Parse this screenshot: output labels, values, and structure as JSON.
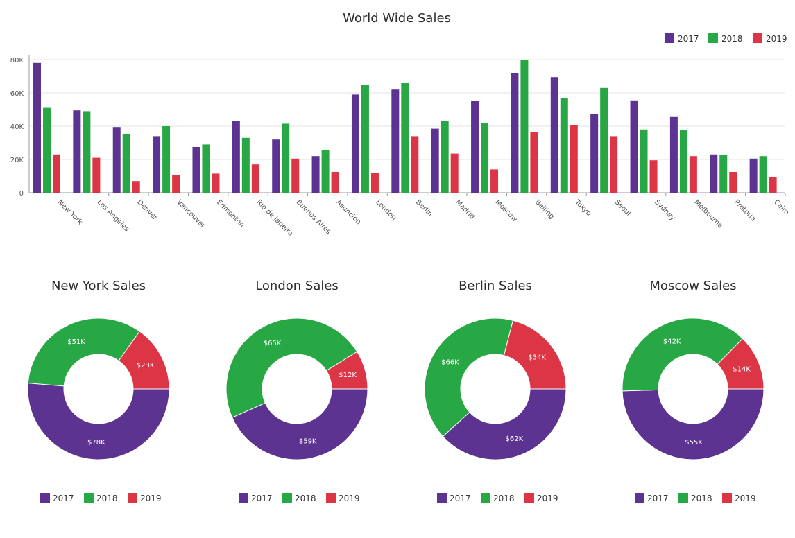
{
  "colors": {
    "2017": "#5c3390",
    "2018": "#28a745",
    "2019": "#dc3545"
  },
  "chart_data": [
    {
      "type": "bar",
      "title": "World Wide Sales",
      "xlabel": "",
      "ylabel": "",
      "ylim": [
        0,
        80000
      ],
      "y_ticks": [
        0,
        20000,
        40000,
        60000,
        80000
      ],
      "y_tick_labels": [
        "0",
        "20K",
        "40K",
        "60K",
        "80K"
      ],
      "grid": true,
      "legend_position": "top-right",
      "categories": [
        "New York",
        "Los Angeles",
        "Denver",
        "Vancouver",
        "Edmonton",
        "Rio de Janeiro",
        "Buenos Aires",
        "Asuncion",
        "London",
        "Berlin",
        "Madrid",
        "Moscow",
        "Beijing",
        "Tokyo",
        "Seoul",
        "Sydney",
        "Melbourne",
        "Pretoria",
        "Cairo"
      ],
      "series": [
        {
          "name": "2017",
          "color": "#5c3390",
          "values": [
            78000,
            49500,
            39500,
            34000,
            27500,
            43000,
            32000,
            22000,
            59000,
            62000,
            38500,
            55000,
            72000,
            69500,
            47500,
            55500,
            45500,
            23000,
            20500
          ]
        },
        {
          "name": "2018",
          "color": "#28a745",
          "values": [
            51000,
            49000,
            35000,
            40000,
            29000,
            33000,
            41500,
            25500,
            65000,
            66000,
            43000,
            42000,
            80000,
            57000,
            63000,
            38000,
            37500,
            22500,
            22000
          ]
        },
        {
          "name": "2019",
          "color": "#dc3545",
          "values": [
            23000,
            21000,
            7000,
            10500,
            11500,
            17000,
            20500,
            12500,
            12000,
            34000,
            23500,
            14000,
            36500,
            40500,
            34000,
            19500,
            22000,
            12500,
            9500
          ]
        }
      ]
    },
    {
      "type": "pie",
      "title": "New York Sales",
      "legend_position": "bottom",
      "categories": [
        "2017",
        "2018",
        "2019"
      ],
      "values": [
        78000,
        51000,
        23000
      ],
      "labels": [
        "$78K",
        "$51K",
        "$23K"
      ]
    },
    {
      "type": "pie",
      "title": "London Sales",
      "legend_position": "bottom",
      "categories": [
        "2017",
        "2018",
        "2019"
      ],
      "values": [
        59000,
        65000,
        12000
      ],
      "labels": [
        "$59K",
        "$65K",
        "$12K"
      ]
    },
    {
      "type": "pie",
      "title": "Berlin Sales",
      "legend_position": "bottom",
      "categories": [
        "2017",
        "2018",
        "2019"
      ],
      "values": [
        62000,
        66000,
        34000
      ],
      "labels": [
        "$62K",
        "$66K",
        "$34K"
      ]
    },
    {
      "type": "pie",
      "title": "Moscow Sales",
      "legend_position": "bottom",
      "categories": [
        "2017",
        "2018",
        "2019"
      ],
      "values": [
        55000,
        42000,
        14000
      ],
      "labels": [
        "$55K",
        "$42K",
        "$14K"
      ]
    }
  ]
}
